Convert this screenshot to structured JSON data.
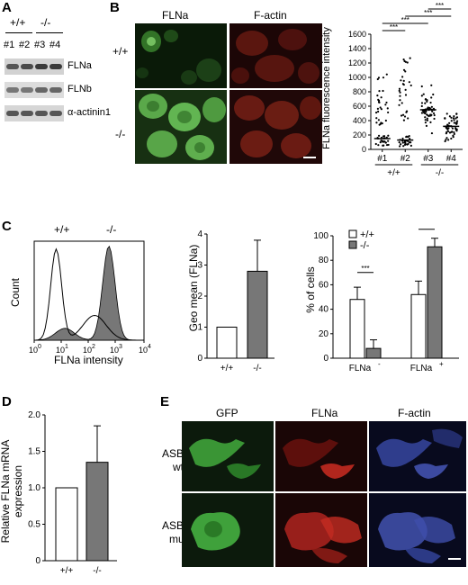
{
  "panelA": {
    "letter": "A",
    "genotype_wt": "+/+",
    "genotype_ko": "-/-",
    "lanes": [
      "#1",
      "#2",
      "#3",
      "#4"
    ],
    "blots": [
      "FLNa",
      "FLNb",
      "α-actinin1"
    ]
  },
  "panelB": {
    "letter": "B",
    "col_labels": [
      "FLNa",
      "F-actin"
    ],
    "row_labels": [
      "+/+",
      "-/-"
    ],
    "chart_data": {
      "type": "scatter",
      "ylabel": "FLNa fluorescence intensity",
      "ylim": [
        0,
        1600
      ],
      "yticks": [
        0,
        200,
        400,
        600,
        800,
        1000,
        1200,
        1400,
        1600
      ],
      "categories": [
        "#1",
        "#2",
        "#3",
        "#4"
      ],
      "group_labels": [
        "+/+",
        "-/-"
      ],
      "medians": [
        150,
        130,
        550,
        320
      ],
      "significance": [
        "***",
        "***",
        "***",
        "***"
      ],
      "spread": [
        [
          50,
          1100
        ],
        [
          40,
          1300
        ],
        [
          150,
          1050
        ],
        [
          100,
          700
        ]
      ],
      "colors": {
        "points": "#000000"
      }
    }
  },
  "panelC": {
    "letter": "C",
    "histogram": {
      "type": "area",
      "xlabel": "FLNa intensity",
      "ylabel": "Count",
      "xticks": [
        "10^0",
        "10^1",
        "10^2",
        "10^3",
        "10^4"
      ],
      "legend": [
        "+/+",
        "-/-"
      ],
      "fill_ko": "#777777"
    },
    "geomean": {
      "type": "bar",
      "ylabel": "Geo mean (FLNa)",
      "categories": [
        "+/+",
        "-/-"
      ],
      "values": [
        1.0,
        2.8
      ],
      "errors": [
        0,
        1.0
      ],
      "ylim": [
        0,
        4
      ],
      "yticks": [
        0,
        1,
        2,
        3,
        4
      ],
      "colors": [
        "#ffffff",
        "#777777"
      ]
    },
    "percent": {
      "type": "bar",
      "ylabel": "% of cells",
      "categories": [
        "FLNa",
        "FLNa"
      ],
      "category_sup": [
        "-",
        "+"
      ],
      "series": [
        {
          "name": "+/+",
          "values": [
            48,
            52
          ],
          "errors": [
            10,
            11
          ],
          "color": "#ffffff"
        },
        {
          "name": "-/-",
          "values": [
            8,
            91
          ],
          "errors": [
            7,
            7
          ],
          "color": "#777777"
        }
      ],
      "ylim": [
        0,
        100
      ],
      "yticks": [
        0,
        20,
        40,
        60,
        80,
        100
      ],
      "significance": [
        "***",
        "***"
      ]
    }
  },
  "panelD": {
    "letter": "D",
    "chart_data": {
      "type": "bar",
      "ylabel": "Relative FLNa mRNA expression",
      "categories": [
        "+/+",
        "-/-"
      ],
      "values": [
        1.0,
        1.35
      ],
      "errors": [
        0,
        0.5
      ],
      "ylim": [
        0,
        2.0
      ],
      "yticks": [
        0,
        0.5,
        1.0,
        1.5,
        2.0
      ],
      "yticklabels": [
        "0",
        "0.5",
        "1.0",
        "1.5",
        "2.0"
      ],
      "colors": [
        "#ffffff",
        "#777777"
      ]
    }
  },
  "panelE": {
    "letter": "E",
    "col_labels": [
      "GFP",
      "FLNa",
      "F-actin"
    ],
    "row_labels": [
      [
        "ASB2α",
        "wt"
      ],
      [
        "ASB2α",
        "mut"
      ]
    ]
  }
}
